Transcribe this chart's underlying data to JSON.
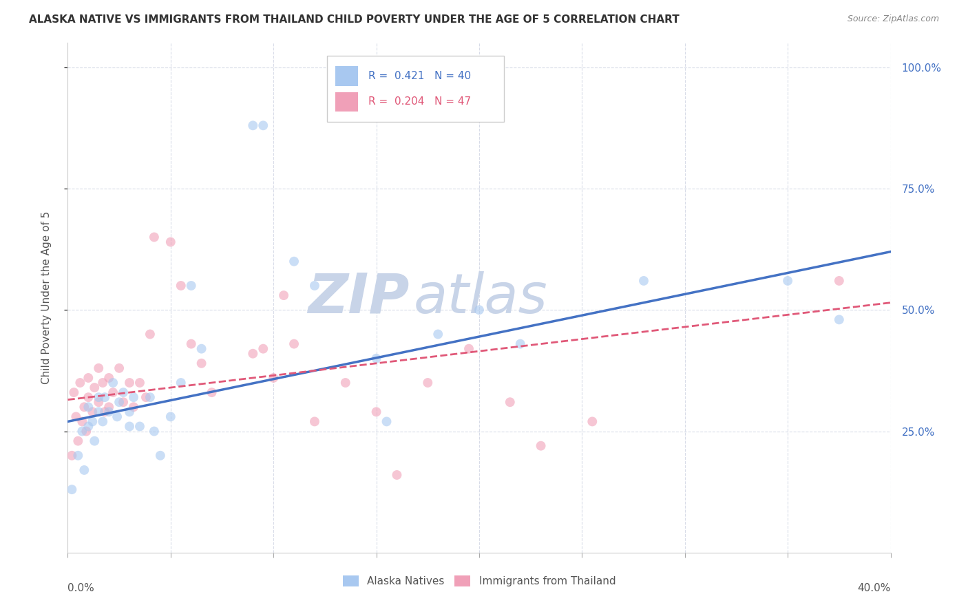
{
  "title": "ALASKA NATIVE VS IMMIGRANTS FROM THAILAND CHILD POVERTY UNDER THE AGE OF 5 CORRELATION CHART",
  "source": "Source: ZipAtlas.com",
  "ylabel": "Child Poverty Under the Age of 5",
  "xlim": [
    0.0,
    0.4
  ],
  "ylim": [
    0.0,
    1.05
  ],
  "yticks": [
    0.25,
    0.5,
    0.75,
    1.0
  ],
  "ytick_labels": [
    "25.0%",
    "50.0%",
    "75.0%",
    "100.0%"
  ],
  "xticks": [
    0.0,
    0.05,
    0.1,
    0.15,
    0.2,
    0.25,
    0.3,
    0.35,
    0.4
  ],
  "legend_blue_r": "0.421",
  "legend_blue_n": "40",
  "legend_pink_r": "0.204",
  "legend_pink_n": "47",
  "legend_blue_label": "Alaska Natives",
  "legend_pink_label": "Immigrants from Thailand",
  "blue_color": "#A8C8F0",
  "pink_color": "#F0A0B8",
  "blue_line_color": "#4472C4",
  "pink_line_color": "#E05878",
  "watermark_zip_color": "#C8D4E8",
  "watermark_atlas_color": "#C8D4E8",
  "right_axis_color": "#4472C4",
  "grid_color": "#D8DCE8",
  "blue_x": [
    0.002,
    0.005,
    0.007,
    0.008,
    0.01,
    0.01,
    0.012,
    0.013,
    0.015,
    0.015,
    0.017,
    0.018,
    0.02,
    0.022,
    0.024,
    0.025,
    0.027,
    0.03,
    0.03,
    0.032,
    0.035,
    0.04,
    0.042,
    0.045,
    0.05,
    0.055,
    0.06,
    0.065,
    0.09,
    0.095,
    0.11,
    0.12,
    0.15,
    0.155,
    0.18,
    0.2,
    0.22,
    0.28,
    0.35,
    0.375
  ],
  "blue_y": [
    0.13,
    0.2,
    0.25,
    0.17,
    0.26,
    0.3,
    0.27,
    0.23,
    0.29,
    0.32,
    0.27,
    0.32,
    0.29,
    0.35,
    0.28,
    0.31,
    0.33,
    0.29,
    0.26,
    0.32,
    0.26,
    0.32,
    0.25,
    0.2,
    0.28,
    0.35,
    0.55,
    0.42,
    0.88,
    0.88,
    0.6,
    0.55,
    0.4,
    0.27,
    0.45,
    0.5,
    0.43,
    0.56,
    0.56,
    0.48
  ],
  "pink_x": [
    0.002,
    0.003,
    0.004,
    0.005,
    0.006,
    0.007,
    0.008,
    0.009,
    0.01,
    0.01,
    0.012,
    0.013,
    0.015,
    0.015,
    0.017,
    0.018,
    0.02,
    0.02,
    0.022,
    0.025,
    0.027,
    0.03,
    0.032,
    0.035,
    0.038,
    0.04,
    0.042,
    0.05,
    0.055,
    0.06,
    0.065,
    0.07,
    0.09,
    0.095,
    0.1,
    0.105,
    0.11,
    0.12,
    0.135,
    0.15,
    0.16,
    0.175,
    0.195,
    0.215,
    0.23,
    0.255,
    0.375
  ],
  "pink_y": [
    0.2,
    0.33,
    0.28,
    0.23,
    0.35,
    0.27,
    0.3,
    0.25,
    0.32,
    0.36,
    0.29,
    0.34,
    0.38,
    0.31,
    0.35,
    0.29,
    0.36,
    0.3,
    0.33,
    0.38,
    0.31,
    0.35,
    0.3,
    0.35,
    0.32,
    0.45,
    0.65,
    0.64,
    0.55,
    0.43,
    0.39,
    0.33,
    0.41,
    0.42,
    0.36,
    0.53,
    0.43,
    0.27,
    0.35,
    0.29,
    0.16,
    0.35,
    0.42,
    0.31,
    0.22,
    0.27,
    0.56
  ],
  "scatter_size": 100,
  "blue_scatter_alpha": 0.6,
  "pink_scatter_alpha": 0.6,
  "blue_trendline_x": [
    0.0,
    0.4
  ],
  "blue_trendline_y": [
    0.27,
    0.62
  ],
  "pink_trendline_x": [
    0.0,
    0.4
  ],
  "pink_trendline_y": [
    0.315,
    0.515
  ]
}
